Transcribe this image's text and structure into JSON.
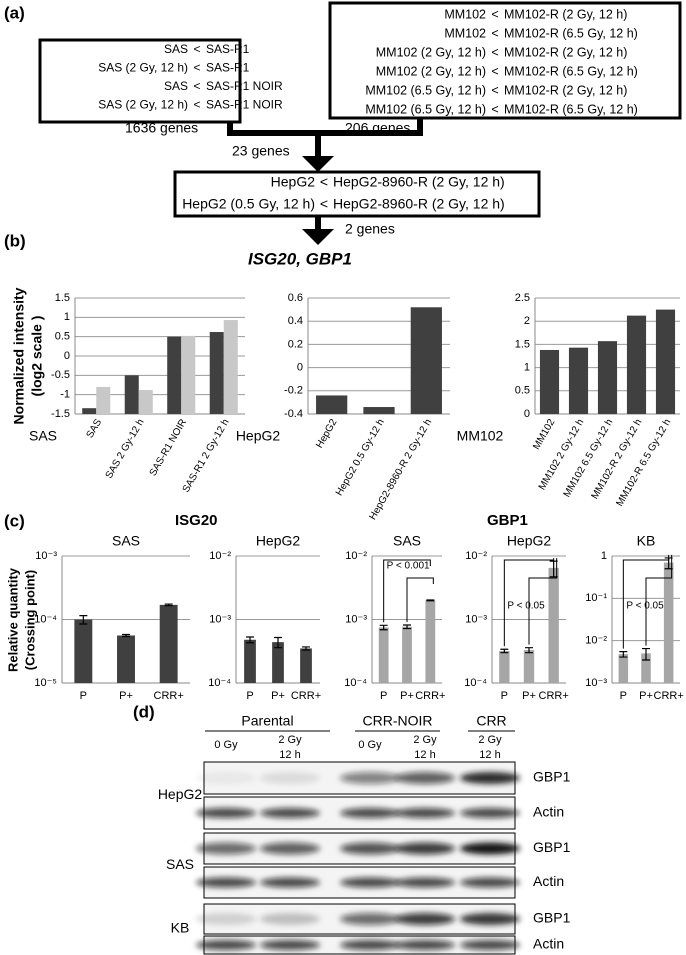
{
  "panels": {
    "a": "(a)",
    "b": "(b)",
    "c": "(c)",
    "d": "(d)"
  },
  "diagram": {
    "left_box": {
      "rows": [
        [
          "SAS",
          "<",
          "SAS-R1"
        ],
        [
          "SAS (2 Gy, 12 h)",
          "<",
          "SAS-R1"
        ],
        [
          "SAS",
          "<",
          "SAS-R1 NOIR"
        ],
        [
          "SAS (2 Gy, 12 h)",
          "<",
          "SAS-R1 NOIR"
        ]
      ]
    },
    "right_box": {
      "rows": [
        [
          "MM102",
          "<",
          "MM102-R (2 Gy, 12 h)"
        ],
        [
          "MM102",
          "<",
          "MM102-R (6.5 Gy, 12 h)"
        ],
        [
          "MM102 (2 Gy, 12 h)",
          "<",
          "MM102-R (2 Gy, 12 h)"
        ],
        [
          "MM102 (2 Gy, 12 h)",
          "<",
          "MM102-R (6.5 Gy, 12 h)"
        ],
        [
          "MM102 (6.5 Gy, 12 h)",
          "<",
          "MM102-R (2 Gy, 12 h)"
        ],
        [
          "MM102 (6.5 Gy, 12 h)",
          "<",
          "MM102-R (6.5 Gy, 12 h)"
        ]
      ]
    },
    "left_count": "1636 genes",
    "right_count": "206 genes",
    "merged_count": "23 genes",
    "middle_box": {
      "rows": [
        [
          "HepG2",
          "<",
          "HepG2-8960-R (2 Gy, 12 h)"
        ],
        [
          "HepG2 (0.5 Gy, 12 h)",
          "<",
          "HepG2-8960-R (2 Gy, 12 h)"
        ]
      ]
    },
    "final_count": "2 genes",
    "result": "ISG20, GBP1"
  },
  "panel_b": {
    "y_label": [
      "Normalized intensity",
      "(log2 scale )"
    ]
  },
  "panel_c": {
    "y_label": [
      "Relative quantity",
      "(Crossing point)"
    ],
    "groups": [
      "ISG20",
      "GBP1"
    ]
  },
  "chart_data": [
    {
      "type": "bar",
      "row_label": "SAS",
      "categories": [
        "SAS",
        "SAS 2 Gy-12 h",
        "SAS-R1 NOIR",
        "SAS-R1 2 Gy-12 h"
      ],
      "series": [
        {
          "color": "#404040",
          "values": [
            -1.35,
            -0.5,
            0.5,
            0.62
          ]
        },
        {
          "color": "#c8c8c8",
          "values": [
            -0.8,
            -0.88,
            0.52,
            0.93
          ]
        }
      ],
      "ylim": [
        -1.5,
        1.5
      ],
      "yticks": [
        -1.5,
        -1,
        -0.5,
        0,
        0.5,
        1,
        1.5
      ],
      "grid": true
    },
    {
      "type": "bar",
      "row_label": "HepG2",
      "categories": [
        "HepG2",
        "HepG2 0.5 Gy-12 h",
        "HepG2-8960-R 2 Gy-12 h"
      ],
      "series": [
        {
          "color": "#404040",
          "values": [
            -0.24,
            -0.34,
            0.52
          ]
        }
      ],
      "ylim": [
        -0.4,
        0.6
      ],
      "yticks": [
        -0.4,
        -0.2,
        0,
        0.2,
        0.4,
        0.6
      ],
      "grid": true
    },
    {
      "type": "bar",
      "row_label": "MM102",
      "categories": [
        "MM102",
        "MM102 2 Gy-12 h",
        "MM102 6.5 Gy-12 h",
        "MM102-R 2 Gy-12 h",
        "MM102-R 6.5 Gy-12 h"
      ],
      "series": [
        {
          "color": "#404040",
          "values": [
            1.38,
            1.43,
            1.57,
            2.12,
            2.25
          ]
        }
      ],
      "ylim": [
        0,
        2.5
      ],
      "yticks": [
        0,
        0.5,
        1,
        1.5,
        2,
        2.5
      ],
      "grid": true
    },
    {
      "type": "errorbar",
      "title": "SAS",
      "log_scale": true,
      "categories": [
        "P",
        "P+",
        "CRR+"
      ],
      "series": [
        {
          "color": "#404040",
          "values": [
            0.0001,
            5.6e-05,
            0.00017
          ],
          "errors": [
            1.5e-05,
            2e-06,
            5e-06
          ]
        }
      ],
      "ylim": [
        1e-05,
        0.001
      ],
      "yticks": [
        {
          "value": 1e-05,
          "label": "10⁻⁵"
        },
        {
          "value": 0.0001,
          "label": "10⁻⁴"
        },
        {
          "value": 0.001,
          "label": "10⁻³"
        }
      ],
      "grid": true
    },
    {
      "type": "errorbar",
      "title": "HepG2",
      "log_scale": true,
      "categories": [
        "P",
        "P+",
        "CRR+"
      ],
      "series": [
        {
          "color": "#404040",
          "values": [
            0.00048,
            0.00044,
            0.00035
          ],
          "errors": [
            5e-05,
            8e-05,
            2e-05
          ]
        }
      ],
      "ylim": [
        0.0001,
        0.01
      ],
      "yticks": [
        {
          "value": 0.0001,
          "label": "10⁻⁴"
        },
        {
          "value": 0.001,
          "label": "10⁻³"
        },
        {
          "value": 0.01,
          "label": "10⁻²"
        }
      ],
      "grid": true
    },
    {
      "type": "errorbar",
      "title": "SAS",
      "log_scale": true,
      "categories": [
        "P",
        "P+",
        "CRR+"
      ],
      "series": [
        {
          "color": "#a6a6a6",
          "values": [
            0.00075,
            0.00077,
            0.002
          ],
          "errors": [
            6e-05,
            5e-05,
            3e-05
          ]
        }
      ],
      "ylim": [
        0.0001,
        0.01
      ],
      "yticks": [
        {
          "value": 0.0001,
          "label": "10⁻⁴"
        },
        {
          "value": 0.001,
          "label": "10⁻³"
        },
        {
          "value": 0.01,
          "label": "10⁻²"
        }
      ],
      "grid": true,
      "annotation": "P < 0.001"
    },
    {
      "type": "errorbar",
      "title": "HepG2",
      "log_scale": true,
      "categories": [
        "P",
        "P+",
        "CRR+"
      ],
      "series": [
        {
          "color": "#a6a6a6",
          "values": [
            0.00032,
            0.00033,
            0.0065
          ],
          "errors": [
            2e-05,
            3e-05,
            0.0018
          ]
        }
      ],
      "ylim": [
        0.0001,
        0.01
      ],
      "yticks": [
        {
          "value": 0.0001,
          "label": "10⁻⁴"
        },
        {
          "value": 0.001,
          "label": "10⁻³"
        },
        {
          "value": 0.01,
          "label": "10⁻²"
        }
      ],
      "grid": true,
      "annotation": "P < 0.05"
    },
    {
      "type": "errorbar",
      "title": "KB",
      "log_scale": true,
      "categories": [
        "P",
        "P+",
        "CRR+"
      ],
      "series": [
        {
          "color": "#a6a6a6",
          "values": [
            0.0048,
            0.005,
            0.7
          ],
          "errors": [
            0.0007,
            0.0015,
            0.2
          ]
        }
      ],
      "ylim": [
        0.001,
        1
      ],
      "yticks": [
        {
          "value": 0.001,
          "label": "10⁻³"
        },
        {
          "value": 0.01,
          "label": "10⁻²"
        },
        {
          "value": 0.1,
          "label": "10⁻¹"
        },
        1
      ],
      "grid": true,
      "annotation": "P < 0.05"
    }
  ],
  "blot": {
    "groups": [
      {
        "label": "Parental",
        "lanes": [
          [
            "0 Gy"
          ],
          [
            "2 Gy",
            "12 h"
          ]
        ]
      },
      {
        "label": "CRR-NOIR",
        "lanes": [
          [
            "0 Gy"
          ],
          [
            "2 Gy",
            "12 h"
          ]
        ]
      },
      {
        "label": "CRR",
        "lanes": [
          [
            "2 Gy",
            "12 h"
          ]
        ]
      }
    ],
    "rows": [
      {
        "cell_line": "HepG2",
        "proteins": [
          "GBP1",
          "Actin"
        ]
      },
      {
        "cell_line": "SAS",
        "proteins": [
          "GBP1",
          "Actin"
        ]
      },
      {
        "cell_line": "KB",
        "proteins": [
          "GBP1",
          "Actin"
        ]
      }
    ]
  }
}
